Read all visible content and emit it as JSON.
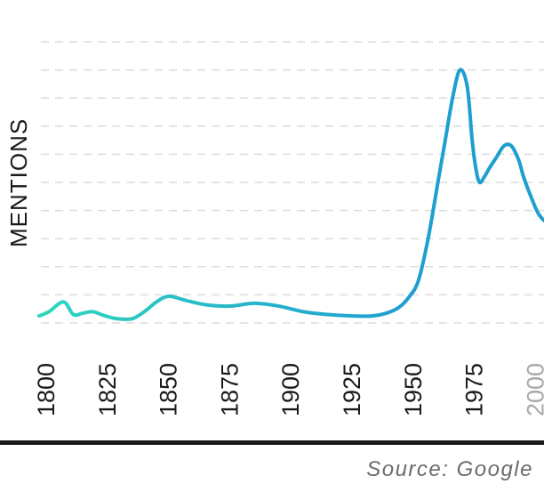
{
  "source": "Source: Google",
  "chart_data": {
    "type": "line",
    "ylabel": "MENTIONS",
    "xlim": [
      1800,
      2010
    ],
    "ylim": [
      0,
      10
    ],
    "gridlines": 10,
    "grid": true,
    "x_ticks": [
      {
        "label": "1800",
        "value": 1800,
        "faded": false
      },
      {
        "label": "1825",
        "value": 1825,
        "faded": false
      },
      {
        "label": "1850",
        "value": 1850,
        "faded": false
      },
      {
        "label": "1875",
        "value": 1875,
        "faded": false
      },
      {
        "label": "1900",
        "value": 1900,
        "faded": false
      },
      {
        "label": "1925",
        "value": 1925,
        "faded": false
      },
      {
        "label": "1950",
        "value": 1950,
        "faded": false
      },
      {
        "label": "1975",
        "value": 1975,
        "faded": false
      },
      {
        "label": "2000",
        "value": 2000,
        "faded": true
      }
    ],
    "line_colors": [
      "#2fd6c0",
      "#1f9fd0"
    ],
    "series": [
      {
        "x": [
          1800,
          1804,
          1810,
          1814,
          1818,
          1822,
          1827,
          1832,
          1838,
          1843,
          1848,
          1853,
          1860,
          1868,
          1878,
          1888,
          1898,
          1908,
          1918,
          1928,
          1936,
          1942,
          1947,
          1951,
          1955,
          1959,
          1963,
          1966,
          1969,
          1972,
          1975,
          1977,
          1978.5,
          1980,
          1982,
          1984,
          1987,
          1990,
          1993,
          1996,
          1998,
          2001,
          2004,
          2007,
          2010
        ],
        "y": [
          0.25,
          0.4,
          0.75,
          0.3,
          0.35,
          0.4,
          0.25,
          0.15,
          0.15,
          0.4,
          0.75,
          0.95,
          0.8,
          0.65,
          0.6,
          0.7,
          0.6,
          0.4,
          0.3,
          0.25,
          0.25,
          0.35,
          0.55,
          0.9,
          1.5,
          3.0,
          5.0,
          6.5,
          8.0,
          9.0,
          8.4,
          6.5,
          5.5,
          5.0,
          5.2,
          5.5,
          5.9,
          6.3,
          6.3,
          5.8,
          5.2,
          4.5,
          3.9,
          3.6,
          3.5
        ]
      }
    ]
  }
}
